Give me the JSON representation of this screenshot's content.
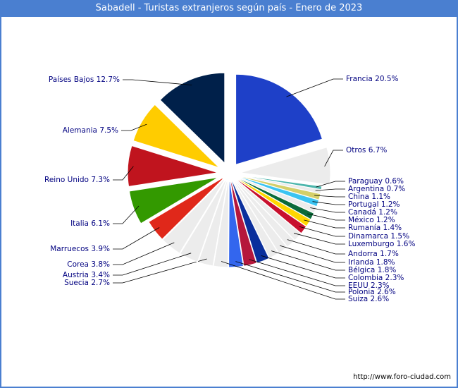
{
  "chart_data": {
    "type": "pie",
    "title": "Sabadell - Turistas extranjeros según país - Enero de 2023",
    "source": "http://www.foro-ciudad.com",
    "slices": [
      {
        "label": "Francia 20.5%",
        "name": "Francia",
        "value": 20.5,
        "color": "#1e40c8"
      },
      {
        "label": "Otros 6.7%",
        "name": "Otros",
        "value": 6.7,
        "color": "#ececec"
      },
      {
        "label": "Paraguay 0.6%",
        "name": "Paraguay",
        "value": 0.6,
        "color": "#4db6ac"
      },
      {
        "label": "Argentina 0.7%",
        "name": "Argentina",
        "value": 0.7,
        "color": "#ececec"
      },
      {
        "label": "China 1.1%",
        "name": "China",
        "value": 1.1,
        "color": "#d4cf6a"
      },
      {
        "label": "Portugal 1.2%",
        "name": "Portugal",
        "value": 1.2,
        "color": "#3bc4f2"
      },
      {
        "label": "Canadá 1.2%",
        "name": "Canadá",
        "value": 1.2,
        "color": "#ececec"
      },
      {
        "label": "México 1.2%",
        "name": "México",
        "value": 1.2,
        "color": "#0b6b3a"
      },
      {
        "label": "Rumanía 1.4%",
        "name": "Rumanía",
        "value": 1.4,
        "color": "#ffd700"
      },
      {
        "label": "Dinamarca 1.5%",
        "name": "Dinamarca",
        "value": 1.5,
        "color": "#c8102e"
      },
      {
        "label": "Luxemburgo 1.6%",
        "name": "Luxemburgo",
        "value": 1.6,
        "color": "#ececec"
      },
      {
        "label": "Andorra 1.7%",
        "name": "Andorra",
        "value": 1.7,
        "color": "#ececec"
      },
      {
        "label": "Irlanda 1.8%",
        "name": "Irlanda",
        "value": 1.8,
        "color": "#ececec"
      },
      {
        "label": "Bélgica 1.8%",
        "name": "Bélgica",
        "value": 1.8,
        "color": "#ececec"
      },
      {
        "label": "Colombia 2.3%",
        "name": "Colombia",
        "value": 2.3,
        "color": "#0a2f9c"
      },
      {
        "label": "EEUU 2.3%",
        "name": "EEUU",
        "value": 2.3,
        "color": "#b5173c"
      },
      {
        "label": "Polonia 2.6%",
        "name": "Polonia",
        "value": 2.6,
        "color": "#3366ee"
      },
      {
        "label": "Suiza 2.6%",
        "name": "Suiza",
        "value": 2.6,
        "color": "#ececec"
      },
      {
        "label": "Suecia 2.7%",
        "name": "Suecia",
        "value": 2.7,
        "color": "#ececec"
      },
      {
        "label": "Austria 3.4%",
        "name": "Austria",
        "value": 3.4,
        "color": "#ececec"
      },
      {
        "label": "Corea 3.8%",
        "name": "Corea",
        "value": 3.8,
        "color": "#ececec"
      },
      {
        "label": "Marruecos 3.9%",
        "name": "Marruecos",
        "value": 3.9,
        "color": "#e0281a"
      },
      {
        "label": "Italia 6.1%",
        "name": "Italia",
        "value": 6.1,
        "color": "#339900"
      },
      {
        "label": "Reino Unido 7.3%",
        "name": "Reino Unido",
        "value": 7.3,
        "color": "#c0141e"
      },
      {
        "label": "Alemania 7.5%",
        "name": "Alemania",
        "value": 7.5,
        "color": "#ffcc00"
      },
      {
        "label": "Países Bajos 12.7%",
        "name": "Países Bajos",
        "value": 12.7,
        "color": "#00204a"
      }
    ]
  }
}
